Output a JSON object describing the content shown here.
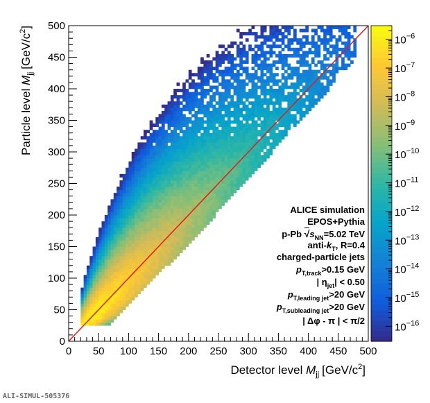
{
  "chart_data": {
    "type": "heatmap",
    "xlabel_prefix": "Detector level ",
    "ylabel_prefix": "Particle level ",
    "label_var": "M",
    "label_sub": "jj",
    "label_unit": "[GeV/c",
    "label_unit_sup": "2",
    "label_unit_close": "]",
    "xlim": [
      0,
      500
    ],
    "ylim": [
      0,
      500
    ],
    "xticks": [
      "0",
      "50",
      "100",
      "150",
      "200",
      "250",
      "300",
      "350",
      "400",
      "450",
      "500"
    ],
    "yticks": [
      "0",
      "50",
      "100",
      "150",
      "200",
      "250",
      "300",
      "350",
      "400",
      "450",
      "500"
    ],
    "colorbar": {
      "scale": "log",
      "min": 3e-17,
      "max": 3e-06,
      "tick_base": "10",
      "tick_exponents": [
        "−16",
        "−15",
        "−14",
        "−13",
        "−12",
        "−11",
        "−10",
        "−9",
        "−8",
        "−7",
        "−6"
      ]
    },
    "diagonal_line": {
      "from": [
        0,
        0
      ],
      "to": [
        500,
        500
      ],
      "color": "#e8191c"
    },
    "distribution": {
      "peak_bin": [
        55,
        50
      ],
      "peak_value": 3e-06,
      "x_min_edge": 20,
      "y_min_edge": 25,
      "bin_width": 5
    }
  },
  "annotations": {
    "line1": "ALICE simulation",
    "line2": "EPOS+Pythia",
    "line3_pre": "p-Pb ",
    "line3_s": "s",
    "line3_nn": "NN",
    "line3_post": "=5.02 TeV",
    "line4_pre": "anti-",
    "line4_k": "k",
    "line4_t": "T",
    "line4_post": ", R=0.4",
    "line5": "charged-particle jets",
    "line6_p": "p",
    "line6_sub": "T,track",
    "line6_post": ">0.15 GeV",
    "line7_pre": "| η",
    "line7_sub": "jet",
    "line7_post": "| < 0.50",
    "line8_p": "p",
    "line8_sub": "T,leading jet",
    "line8_post": ">20 GeV",
    "line9_p": "p",
    "line9_sub": "T,subleading jet",
    "line9_post": ">20 GeV",
    "line10": "| Δφ - π | < π/2"
  },
  "footer": "ALI-SIMUL-505376",
  "colors": {
    "palette": [
      "#352a87",
      "#0f5cdd",
      "#1481d6",
      "#06a4ca",
      "#2eb7a4",
      "#87bf77",
      "#d1bb59",
      "#fec832",
      "#f9fb0e"
    ],
    "line": "#e8191c"
  }
}
